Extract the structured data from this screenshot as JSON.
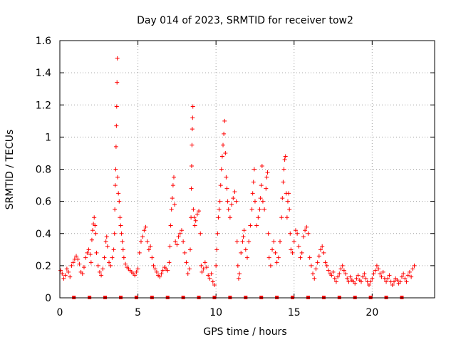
{
  "chart_data": {
    "type": "scatter",
    "title": "Day 014 of 2023, SRMTID for receiver tow2",
    "xlabel": "GPS time / hours",
    "ylabel": "SRMTID / TECUs",
    "xlim": [
      0,
      24
    ],
    "ylim": [
      0,
      1.6
    ],
    "x_ticks": [
      0,
      5,
      10,
      15,
      20
    ],
    "x_tick_labels": [
      "0",
      "5",
      "10",
      "15",
      "20"
    ],
    "y_ticks": [
      0,
      0.2,
      0.4,
      0.6,
      0.8,
      1.0,
      1.2,
      1.4,
      1.6
    ],
    "y_tick_labels": [
      "0",
      "0.2",
      "0.4",
      "0.6",
      "0.8",
      "1",
      "1.2",
      "1.4",
      "1.6"
    ],
    "grid": true,
    "marker": "+",
    "point_color": "#ff0000",
    "zero_markers_x": [
      0.9,
      1.9,
      2.9,
      3.9,
      4.9,
      5.9,
      6.9,
      7.9,
      8.9,
      9.9,
      10.9,
      11.9,
      12.9,
      13.9,
      14.9,
      15.9,
      16.9,
      17.9,
      18.9,
      19.9,
      20.9,
      21.9
    ],
    "series": [
      {
        "name": "SRMTID",
        "points": [
          [
            0.05,
            0.17
          ],
          [
            0.15,
            0.15
          ],
          [
            0.25,
            0.12
          ],
          [
            0.35,
            0.14
          ],
          [
            0.45,
            0.18
          ],
          [
            0.55,
            0.16
          ],
          [
            0.65,
            0.13
          ],
          [
            0.75,
            0.2
          ],
          [
            0.85,
            0.22
          ],
          [
            0.95,
            0.24
          ],
          [
            1.05,
            0.26
          ],
          [
            1.15,
            0.24
          ],
          [
            1.25,
            0.21
          ],
          [
            1.35,
            0.16
          ],
          [
            1.45,
            0.15
          ],
          [
            1.55,
            0.19
          ],
          [
            1.65,
            0.25
          ],
          [
            1.75,
            0.28
          ],
          [
            1.85,
            0.3
          ],
          [
            1.95,
            0.27
          ],
          [
            2.0,
            0.22
          ],
          [
            2.05,
            0.36
          ],
          [
            2.1,
            0.42
          ],
          [
            2.15,
            0.46
          ],
          [
            2.2,
            0.5
          ],
          [
            2.25,
            0.45
          ],
          [
            2.3,
            0.4
          ],
          [
            2.35,
            0.28
          ],
          [
            2.45,
            0.2
          ],
          [
            2.55,
            0.16
          ],
          [
            2.65,
            0.14
          ],
          [
            2.75,
            0.18
          ],
          [
            2.85,
            0.25
          ],
          [
            2.95,
            0.35
          ],
          [
            3.0,
            0.38
          ],
          [
            3.05,
            0.32
          ],
          [
            3.15,
            0.22
          ],
          [
            3.25,
            0.2
          ],
          [
            3.35,
            0.25
          ],
          [
            3.45,
            0.3
          ],
          [
            3.5,
            0.4
          ],
          [
            3.52,
            0.55
          ],
          [
            3.55,
            0.7
          ],
          [
            3.58,
            0.8
          ],
          [
            3.6,
            0.94
          ],
          [
            3.62,
            1.07
          ],
          [
            3.64,
            1.19
          ],
          [
            3.66,
            1.34
          ],
          [
            3.68,
            1.49
          ],
          [
            3.7,
            0.75
          ],
          [
            3.75,
            0.65
          ],
          [
            3.8,
            0.6
          ],
          [
            3.85,
            0.5
          ],
          [
            3.9,
            0.45
          ],
          [
            3.95,
            0.4
          ],
          [
            4.0,
            0.35
          ],
          [
            4.05,
            0.3
          ],
          [
            4.1,
            0.25
          ],
          [
            4.2,
            0.21
          ],
          [
            4.3,
            0.19
          ],
          [
            4.4,
            0.18
          ],
          [
            4.5,
            0.17
          ],
          [
            4.6,
            0.16
          ],
          [
            4.7,
            0.15
          ],
          [
            4.8,
            0.14
          ],
          [
            4.9,
            0.16
          ],
          [
            5.0,
            0.18
          ],
          [
            5.1,
            0.28
          ],
          [
            5.2,
            0.35
          ],
          [
            5.3,
            0.38
          ],
          [
            5.4,
            0.42
          ],
          [
            5.5,
            0.44
          ],
          [
            5.6,
            0.35
          ],
          [
            5.7,
            0.3
          ],
          [
            5.8,
            0.32
          ],
          [
            5.9,
            0.25
          ],
          [
            6.0,
            0.2
          ],
          [
            6.1,
            0.18
          ],
          [
            6.2,
            0.16
          ],
          [
            6.3,
            0.14
          ],
          [
            6.4,
            0.13
          ],
          [
            6.5,
            0.15
          ],
          [
            6.6,
            0.17
          ],
          [
            6.7,
            0.19
          ],
          [
            6.8,
            0.18
          ],
          [
            6.9,
            0.17
          ],
          [
            7.0,
            0.22
          ],
          [
            7.05,
            0.32
          ],
          [
            7.1,
            0.45
          ],
          [
            7.15,
            0.55
          ],
          [
            7.2,
            0.62
          ],
          [
            7.25,
            0.7
          ],
          [
            7.3,
            0.75
          ],
          [
            7.35,
            0.58
          ],
          [
            7.4,
            0.35
          ],
          [
            7.5,
            0.33
          ],
          [
            7.6,
            0.38
          ],
          [
            7.7,
            0.4
          ],
          [
            7.8,
            0.42
          ],
          [
            7.9,
            0.35
          ],
          [
            8.0,
            0.28
          ],
          [
            8.1,
            0.22
          ],
          [
            8.2,
            0.15
          ],
          [
            8.3,
            0.18
          ],
          [
            8.35,
            0.3
          ],
          [
            8.4,
            0.5
          ],
          [
            8.42,
            0.68
          ],
          [
            8.44,
            0.82
          ],
          [
            8.46,
            0.95
          ],
          [
            8.48,
            1.05
          ],
          [
            8.5,
            1.12
          ],
          [
            8.52,
            1.19
          ],
          [
            8.55,
            0.55
          ],
          [
            8.6,
            0.5
          ],
          [
            8.65,
            0.45
          ],
          [
            8.7,
            0.48
          ],
          [
            8.8,
            0.52
          ],
          [
            8.9,
            0.54
          ],
          [
            9.0,
            0.4
          ],
          [
            9.05,
            0.2
          ],
          [
            9.1,
            0.16
          ],
          [
            9.2,
            0.18
          ],
          [
            9.3,
            0.22
          ],
          [
            9.4,
            0.19
          ],
          [
            9.5,
            0.14
          ],
          [
            9.6,
            0.12
          ],
          [
            9.7,
            0.15
          ],
          [
            9.8,
            0.1
          ],
          [
            9.9,
            0.08
          ],
          [
            10.0,
            0.2
          ],
          [
            10.05,
            0.3
          ],
          [
            10.1,
            0.4
          ],
          [
            10.15,
            0.5
          ],
          [
            10.2,
            0.55
          ],
          [
            10.25,
            0.6
          ],
          [
            10.3,
            0.7
          ],
          [
            10.35,
            0.8
          ],
          [
            10.4,
            0.88
          ],
          [
            10.45,
            0.95
          ],
          [
            10.5,
            1.02
          ],
          [
            10.55,
            1.1
          ],
          [
            10.6,
            0.9
          ],
          [
            10.65,
            0.75
          ],
          [
            10.7,
            0.68
          ],
          [
            10.75,
            0.6
          ],
          [
            10.8,
            0.55
          ],
          [
            10.9,
            0.5
          ],
          [
            11.0,
            0.58
          ],
          [
            11.1,
            0.62
          ],
          [
            11.2,
            0.66
          ],
          [
            11.3,
            0.6
          ],
          [
            11.35,
            0.35
          ],
          [
            11.4,
            0.2
          ],
          [
            11.45,
            0.12
          ],
          [
            11.5,
            0.15
          ],
          [
            11.6,
            0.28
          ],
          [
            11.7,
            0.35
          ],
          [
            11.75,
            0.38
          ],
          [
            11.8,
            0.42
          ],
          [
            11.9,
            0.3
          ],
          [
            12.0,
            0.25
          ],
          [
            12.1,
            0.35
          ],
          [
            12.2,
            0.45
          ],
          [
            12.3,
            0.55
          ],
          [
            12.35,
            0.65
          ],
          [
            12.4,
            0.72
          ],
          [
            12.45,
            0.8
          ],
          [
            12.5,
            0.6
          ],
          [
            12.6,
            0.45
          ],
          [
            12.7,
            0.5
          ],
          [
            12.8,
            0.55
          ],
          [
            12.85,
            0.62
          ],
          [
            12.9,
            0.7
          ],
          [
            12.95,
            0.82
          ],
          [
            13.0,
            0.6
          ],
          [
            13.1,
            0.55
          ],
          [
            13.2,
            0.68
          ],
          [
            13.25,
            0.75
          ],
          [
            13.3,
            0.78
          ],
          [
            13.35,
            0.4
          ],
          [
            13.4,
            0.25
          ],
          [
            13.5,
            0.2
          ],
          [
            13.6,
            0.3
          ],
          [
            13.7,
            0.35
          ],
          [
            13.8,
            0.28
          ],
          [
            13.9,
            0.22
          ],
          [
            14.0,
            0.25
          ],
          [
            14.1,
            0.35
          ],
          [
            14.2,
            0.5
          ],
          [
            14.25,
            0.62
          ],
          [
            14.3,
            0.72
          ],
          [
            14.35,
            0.8
          ],
          [
            14.4,
            0.86
          ],
          [
            14.45,
            0.88
          ],
          [
            14.5,
            0.65
          ],
          [
            14.55,
            0.5
          ],
          [
            14.6,
            0.6
          ],
          [
            14.65,
            0.65
          ],
          [
            14.7,
            0.55
          ],
          [
            14.75,
            0.4
          ],
          [
            14.8,
            0.3
          ],
          [
            14.9,
            0.28
          ],
          [
            15.0,
            0.35
          ],
          [
            15.1,
            0.42
          ],
          [
            15.2,
            0.4
          ],
          [
            15.3,
            0.32
          ],
          [
            15.4,
            0.25
          ],
          [
            15.5,
            0.28
          ],
          [
            15.6,
            0.38
          ],
          [
            15.7,
            0.42
          ],
          [
            15.8,
            0.44
          ],
          [
            15.9,
            0.4
          ],
          [
            16.0,
            0.25
          ],
          [
            16.1,
            0.2
          ],
          [
            16.2,
            0.15
          ],
          [
            16.3,
            0.12
          ],
          [
            16.4,
            0.18
          ],
          [
            16.5,
            0.22
          ],
          [
            16.6,
            0.26
          ],
          [
            16.7,
            0.3
          ],
          [
            16.8,
            0.32
          ],
          [
            16.9,
            0.28
          ],
          [
            17.0,
            0.22
          ],
          [
            17.1,
            0.2
          ],
          [
            17.2,
            0.17
          ],
          [
            17.3,
            0.15
          ],
          [
            17.4,
            0.14
          ],
          [
            17.5,
            0.16
          ],
          [
            17.6,
            0.12
          ],
          [
            17.7,
            0.1
          ],
          [
            17.8,
            0.13
          ],
          [
            17.9,
            0.15
          ],
          [
            18.0,
            0.18
          ],
          [
            18.1,
            0.2
          ],
          [
            18.2,
            0.17
          ],
          [
            18.3,
            0.15
          ],
          [
            18.4,
            0.12
          ],
          [
            18.5,
            0.1
          ],
          [
            18.6,
            0.13
          ],
          [
            18.7,
            0.11
          ],
          [
            18.8,
            0.1
          ],
          [
            18.9,
            0.09
          ],
          [
            19.0,
            0.12
          ],
          [
            19.1,
            0.14
          ],
          [
            19.2,
            0.11
          ],
          [
            19.3,
            0.1
          ],
          [
            19.4,
            0.13
          ],
          [
            19.5,
            0.15
          ],
          [
            19.6,
            0.12
          ],
          [
            19.7,
            0.1
          ],
          [
            19.8,
            0.08
          ],
          [
            19.9,
            0.1
          ],
          [
            20.0,
            0.12
          ],
          [
            20.1,
            0.15
          ],
          [
            20.2,
            0.17
          ],
          [
            20.3,
            0.2
          ],
          [
            20.4,
            0.18
          ],
          [
            20.5,
            0.15
          ],
          [
            20.6,
            0.13
          ],
          [
            20.7,
            0.16
          ],
          [
            20.8,
            0.12
          ],
          [
            20.9,
            0.1
          ],
          [
            21.0,
            0.12
          ],
          [
            21.1,
            0.14
          ],
          [
            21.2,
            0.1
          ],
          [
            21.3,
            0.08
          ],
          [
            21.4,
            0.1
          ],
          [
            21.5,
            0.12
          ],
          [
            21.6,
            0.11
          ],
          [
            21.7,
            0.09
          ],
          [
            21.8,
            0.1
          ],
          [
            21.9,
            0.13
          ],
          [
            22.0,
            0.15
          ],
          [
            22.1,
            0.12
          ],
          [
            22.2,
            0.1
          ],
          [
            22.3,
            0.14
          ],
          [
            22.4,
            0.16
          ],
          [
            22.5,
            0.13
          ],
          [
            22.6,
            0.18
          ],
          [
            22.7,
            0.2
          ]
        ]
      }
    ]
  }
}
